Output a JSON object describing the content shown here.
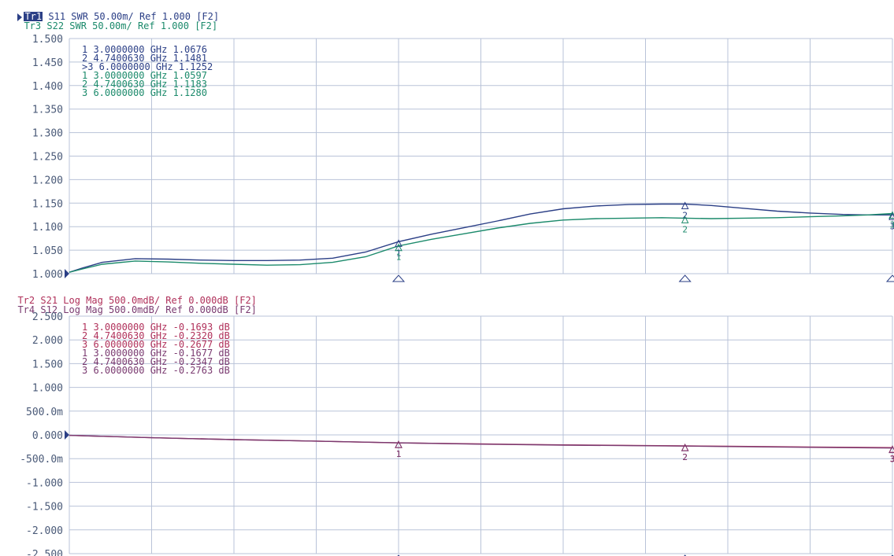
{
  "colors": {
    "tr1": "#2b3f86",
    "tr3": "#1b8a6b",
    "tr2": "#b0305a",
    "tr4": "#7a3a70",
    "grid": "#b9c3d8",
    "axis_text": "#4a5a78"
  },
  "header": {
    "top_line1": {
      "tag": "Tr1",
      "rest": " S11 SWR 50.00m/ Ref 1.000 [F2]"
    },
    "top_line2": {
      "tag": "Tr3",
      "rest": " S22 SWR 50.00m/ Ref 1.000 [F2]"
    },
    "bot_line1": {
      "tag": "Tr2",
      "rest": " S21 Log Mag 500.0mdB/ Ref 0.000dB [F2]"
    },
    "bot_line2": {
      "tag": "Tr4",
      "rest": " S12 Log Mag 500.0mdB/ Ref 0.000dB [F2]"
    }
  },
  "chart_data": [
    {
      "type": "line",
      "title": "",
      "x_range_ghz": [
        1.0,
        6.0
      ],
      "ylim": [
        1.0,
        1.5
      ],
      "y_ticks": [
        "1.500",
        "1.450",
        "1.400",
        "1.350",
        "1.300",
        "1.250",
        "1.200",
        "1.150",
        "1.100",
        "1.050",
        "1.000"
      ],
      "grid": true,
      "markers": [
        {
          "trace": "tr1",
          "label": "1",
          "freq": "3.0000000 GHz",
          "value": "1.0676"
        },
        {
          "trace": "tr1",
          "label": "2",
          "freq": "4.7400630 GHz",
          "value": "1.1481"
        },
        {
          "trace": "tr1",
          "label": ">3",
          "freq": "6.0000000 GHz",
          "value": "1.1252"
        },
        {
          "trace": "tr3",
          "label": "1",
          "freq": "3.0000000 GHz",
          "value": "1.0597"
        },
        {
          "trace": "tr3",
          "label": "2",
          "freq": "4.7400630 GHz",
          "value": "1.1183"
        },
        {
          "trace": "tr3",
          "label": "3",
          "freq": "6.0000000 GHz",
          "value": "1.1280"
        }
      ],
      "series": [
        {
          "trace": "tr1",
          "x": [
            1.0,
            1.08,
            1.2,
            1.4,
            1.6,
            1.8,
            2.0,
            2.2,
            2.4,
            2.6,
            2.8,
            3.0,
            3.2,
            3.4,
            3.6,
            3.8,
            4.0,
            4.2,
            4.4,
            4.6,
            4.74,
            4.9,
            5.1,
            5.3,
            5.5,
            5.7,
            5.85,
            6.0
          ],
          "y": [
            1.003,
            1.012,
            1.024,
            1.032,
            1.031,
            1.029,
            1.028,
            1.028,
            1.029,
            1.033,
            1.046,
            1.068,
            1.084,
            1.098,
            1.112,
            1.127,
            1.138,
            1.144,
            1.147,
            1.148,
            1.148,
            1.145,
            1.139,
            1.133,
            1.129,
            1.126,
            1.125,
            1.125
          ]
        },
        {
          "trace": "tr3",
          "x": [
            1.0,
            1.08,
            1.2,
            1.4,
            1.6,
            1.8,
            2.0,
            2.2,
            2.4,
            2.6,
            2.8,
            3.0,
            3.2,
            3.4,
            3.6,
            3.8,
            4.0,
            4.2,
            4.4,
            4.6,
            4.74,
            4.9,
            5.1,
            5.3,
            5.5,
            5.7,
            5.85,
            6.0
          ],
          "y": [
            1.003,
            1.01,
            1.02,
            1.027,
            1.025,
            1.022,
            1.02,
            1.018,
            1.019,
            1.024,
            1.036,
            1.059,
            1.073,
            1.085,
            1.097,
            1.107,
            1.114,
            1.117,
            1.118,
            1.119,
            1.118,
            1.117,
            1.118,
            1.119,
            1.121,
            1.123,
            1.125,
            1.128
          ]
        }
      ]
    },
    {
      "type": "line",
      "title": "",
      "x_range_ghz": [
        1.0,
        6.0
      ],
      "ylim": [
        -2.5,
        2.5
      ],
      "y_ticks": [
        "2.500",
        "2.000",
        "1.500",
        "1.000",
        "500.0m",
        "0.000",
        "-500.0m",
        "-1.000",
        "-1.500",
        "-2.000",
        "-2.500"
      ],
      "grid": true,
      "markers": [
        {
          "trace": "tr2",
          "label": "1",
          "freq": "3.0000000 GHz",
          "value": "-0.1693 dB"
        },
        {
          "trace": "tr2",
          "label": "2",
          "freq": "4.7400630 GHz",
          "value": "-0.2320 dB"
        },
        {
          "trace": "tr2",
          "label": "3",
          "freq": "6.0000000 GHz",
          "value": "-0.2677 dB"
        },
        {
          "trace": "tr4",
          "label": "1",
          "freq": "3.0000000 GHz",
          "value": "-0.1677 dB"
        },
        {
          "trace": "tr4",
          "label": "2",
          "freq": "4.7400630 GHz",
          "value": "-0.2347 dB"
        },
        {
          "trace": "tr4",
          "label": "3",
          "freq": "6.0000000 GHz",
          "value": "-0.2763 dB"
        }
      ],
      "series": [
        {
          "trace": "tr2",
          "x": [
            1.0,
            1.5,
            2.0,
            2.5,
            3.0,
            3.5,
            4.0,
            4.5,
            4.74,
            5.0,
            5.5,
            6.0
          ],
          "y": [
            -0.01,
            -0.06,
            -0.1,
            -0.13,
            -0.169,
            -0.19,
            -0.21,
            -0.225,
            -0.232,
            -0.24,
            -0.255,
            -0.268
          ]
        },
        {
          "trace": "tr4",
          "x": [
            1.0,
            1.5,
            2.0,
            2.5,
            3.0,
            3.5,
            4.0,
            4.5,
            4.74,
            5.0,
            5.5,
            6.0
          ],
          "y": [
            -0.01,
            -0.06,
            -0.1,
            -0.13,
            -0.168,
            -0.195,
            -0.215,
            -0.228,
            -0.235,
            -0.245,
            -0.262,
            -0.276
          ]
        }
      ]
    }
  ]
}
